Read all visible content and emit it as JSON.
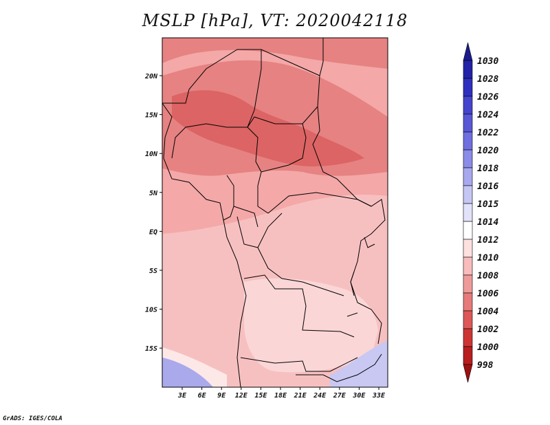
{
  "title": "MSLP [hPa], VT: 2020042118",
  "credit": "GrADS: IGES/COLA",
  "x_ticks": [
    "3E",
    "6E",
    "9E",
    "12E",
    "15E",
    "18E",
    "21E",
    "24E",
    "27E",
    "30E",
    "33E"
  ],
  "y_ticks": [
    "20N",
    "15N",
    "10N",
    "5N",
    "EQ",
    "5S",
    "10S",
    "15S"
  ],
  "colorbar": {
    "labels": [
      "1030",
      "1028",
      "1026",
      "1024",
      "1022",
      "1020",
      "1018",
      "1016",
      "1015",
      "1014",
      "1012",
      "1010",
      "1008",
      "1006",
      "1004",
      "1002",
      "1000",
      "998"
    ],
    "colors": [
      "#1b1b8e",
      "#2323a8",
      "#2f2fbf",
      "#4444cc",
      "#5858d6",
      "#6f6fe0",
      "#8b8be8",
      "#a8a8ef",
      "#c6c6f5",
      "#e2e2fa",
      "#ffffff",
      "#fde0e0",
      "#f8bcbc",
      "#ef9a9a",
      "#e67a7a",
      "#dc5858",
      "#cd3535",
      "#b81e1e",
      "#9e1010"
    ]
  },
  "map_fields": {
    "colors": {
      "land_base": "#f4a8a8",
      "low_1006": "#e68282",
      "low_1004": "#dc6464",
      "mid_1010": "#f7c0c0",
      "high_1012": "#fbd6d6",
      "high_1014": "#fde8e8",
      "high_1016": "#c8c8f2",
      "high_1018": "#a9a9ec"
    }
  }
}
